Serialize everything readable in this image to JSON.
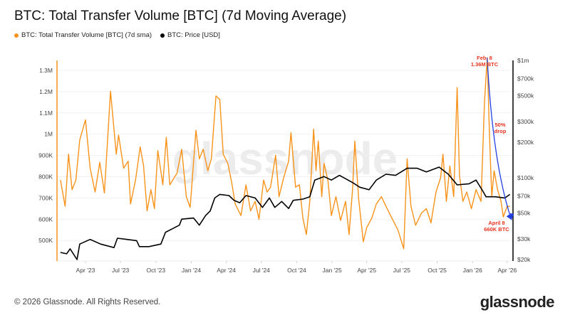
{
  "title": "BTC: Total Transfer Volume [BTC] (7d Moving Average)",
  "footer": "© 2026 Glassnode. All Rights Reserved.",
  "logo": "glassnode",
  "watermark": "glassnode",
  "chart_data": {
    "type": "line",
    "title": "BTC: Total Transfer Volume [BTC] (7d Moving Average)",
    "legend_position": "top-left",
    "grid": true,
    "x_ticks": [
      "Apr '23",
      "Jul '23",
      "Oct '23",
      "Jan '24",
      "Apr '24",
      "Jul '24",
      "Oct '24",
      "Jan '25",
      "Apr '25",
      "Jul '25",
      "Oct '25",
      "Jan '26",
      "Apr '26"
    ],
    "x_tick_dates": [
      "2023-04-01",
      "2023-07-01",
      "2023-10-01",
      "2024-01-01",
      "2024-04-01",
      "2024-07-01",
      "2024-10-01",
      "2025-01-01",
      "2025-04-01",
      "2025-07-01",
      "2025-10-01",
      "2026-01-01",
      "2026-04-01"
    ],
    "y_left": {
      "scale": "linear",
      "range": [
        450000,
        1400000
      ],
      "ticks": [
        500000,
        600000,
        700000,
        800000,
        900000,
        1000000,
        1100000,
        1200000,
        1300000
      ],
      "tick_labels": [
        "500K",
        "600K",
        "700K",
        "800K",
        "900K",
        "1M",
        "1.1M",
        "1.2M",
        "1.3M"
      ]
    },
    "y_right": {
      "scale": "log",
      "range": [
        20000,
        1000000
      ],
      "ticks": [
        1000000,
        700000,
        500000,
        300000,
        200000,
        100000,
        70000,
        50000,
        30000,
        20000
      ],
      "tick_labels": [
        "$1m",
        "$700k",
        "$500k",
        "$300k",
        "$200k",
        "$100k",
        "$70k",
        "$50k",
        "$30k",
        "$20k"
      ]
    },
    "series": [
      {
        "name": "BTC: Total Transfer Volume [BTC] (7d sma)",
        "axis": "left",
        "color": "#f7931a",
        "points": [
          [
            "2023-01-26",
            784000
          ],
          [
            "2023-02-07",
            661000
          ],
          [
            "2023-02-16",
            906000
          ],
          [
            "2023-02-25",
            739000
          ],
          [
            "2023-03-07",
            784000
          ],
          [
            "2023-03-17",
            973000
          ],
          [
            "2023-04-01",
            1068000
          ],
          [
            "2023-04-13",
            840000
          ],
          [
            "2023-04-26",
            728000
          ],
          [
            "2023-05-08",
            868000
          ],
          [
            "2023-05-20",
            723000
          ],
          [
            "2023-06-05",
            1202000
          ],
          [
            "2023-06-20",
            906000
          ],
          [
            "2023-06-26",
            996000
          ],
          [
            "2023-07-09",
            840000
          ],
          [
            "2023-07-21",
            873000
          ],
          [
            "2023-07-27",
            672000
          ],
          [
            "2023-08-09",
            784000
          ],
          [
            "2023-08-21",
            940000
          ],
          [
            "2023-08-30",
            851000
          ],
          [
            "2023-09-08",
            639000
          ],
          [
            "2023-09-18",
            739000
          ],
          [
            "2023-09-27",
            650000
          ],
          [
            "2023-10-06",
            923000
          ],
          [
            "2023-10-19",
            762000
          ],
          [
            "2023-10-28",
            985000
          ],
          [
            "2023-11-06",
            762000
          ],
          [
            "2023-11-25",
            817000
          ],
          [
            "2023-12-07",
            929000
          ],
          [
            "2023-12-19",
            706000
          ],
          [
            "2023-12-29",
            656000
          ],
          [
            "2024-01-13",
            1018000
          ],
          [
            "2024-01-22",
            884000
          ],
          [
            "2024-02-01",
            929000
          ],
          [
            "2024-02-13",
            828000
          ],
          [
            "2024-02-22",
            884000
          ],
          [
            "2024-03-05",
            1180000
          ],
          [
            "2024-03-15",
            1163000
          ],
          [
            "2024-03-24",
            906000
          ],
          [
            "2024-04-05",
            862000
          ],
          [
            "2024-04-15",
            773000
          ],
          [
            "2024-04-24",
            672000
          ],
          [
            "2024-05-09",
            617000
          ],
          [
            "2024-05-22",
            762000
          ],
          [
            "2024-06-03",
            639000
          ],
          [
            "2024-06-15",
            684000
          ],
          [
            "2024-06-25",
            600000
          ],
          [
            "2024-07-07",
            784000
          ],
          [
            "2024-07-16",
            728000
          ],
          [
            "2024-07-25",
            751000
          ],
          [
            "2024-08-07",
            901000
          ],
          [
            "2024-08-16",
            706000
          ],
          [
            "2024-08-28",
            795000
          ],
          [
            "2024-09-10",
            873000
          ],
          [
            "2024-09-16",
            1007000
          ],
          [
            "2024-09-28",
            751000
          ],
          [
            "2024-10-08",
            762000
          ],
          [
            "2024-10-17",
            605000
          ],
          [
            "2024-10-26",
            528000
          ],
          [
            "2024-11-04",
            684000
          ],
          [
            "2024-11-14",
            1024000
          ],
          [
            "2024-11-20",
            828000
          ],
          [
            "2024-11-26",
            968000
          ],
          [
            "2024-12-05",
            706000
          ],
          [
            "2024-12-11",
            862000
          ],
          [
            "2024-12-21",
            784000
          ],
          [
            "2024-12-30",
            617000
          ],
          [
            "2025-01-11",
            706000
          ],
          [
            "2025-01-23",
            594000
          ],
          [
            "2025-02-05",
            684000
          ],
          [
            "2025-02-14",
            528000
          ],
          [
            "2025-02-23",
            739000
          ],
          [
            "2025-03-01",
            968000
          ],
          [
            "2025-03-11",
            695000
          ],
          [
            "2025-03-23",
            494000
          ],
          [
            "2025-04-01",
            561000
          ],
          [
            "2025-04-14",
            605000
          ],
          [
            "2025-04-26",
            672000
          ],
          [
            "2025-05-09",
            706000
          ],
          [
            "2025-05-21",
            661000
          ],
          [
            "2025-06-02",
            617000
          ],
          [
            "2025-06-21",
            550000
          ],
          [
            "2025-07-06",
            461000
          ],
          [
            "2025-07-15",
            884000
          ],
          [
            "2025-07-25",
            661000
          ],
          [
            "2025-08-06",
            572000
          ],
          [
            "2025-08-21",
            628000
          ],
          [
            "2025-09-03",
            650000
          ],
          [
            "2025-09-15",
            583000
          ],
          [
            "2025-09-28",
            728000
          ],
          [
            "2025-10-10",
            795000
          ],
          [
            "2025-10-16",
            906000
          ],
          [
            "2025-10-25",
            684000
          ],
          [
            "2025-11-03",
            851000
          ],
          [
            "2025-11-13",
            706000
          ],
          [
            "2025-11-22",
            1219000
          ],
          [
            "2025-11-28",
            806000
          ],
          [
            "2025-12-07",
            684000
          ],
          [
            "2025-12-17",
            728000
          ],
          [
            "2025-12-29",
            650000
          ],
          [
            "2026-01-10",
            739000
          ],
          [
            "2026-01-23",
            684000
          ],
          [
            "2026-02-01",
            1152000
          ],
          [
            "2026-02-08",
            1360000
          ],
          [
            "2026-02-14",
            996000
          ],
          [
            "2026-02-20",
            706000
          ],
          [
            "2026-02-26",
            828000
          ],
          [
            "2026-03-07",
            739000
          ],
          [
            "2026-03-16",
            684000
          ],
          [
            "2026-03-22",
            611000
          ],
          [
            "2026-04-01",
            661000
          ],
          [
            "2026-04-08",
            660000
          ]
        ]
      },
      {
        "name": "BTC: Price [USD]",
        "axis": "right",
        "color": "#000000",
        "points": [
          [
            "2023-01-26",
            23000
          ],
          [
            "2023-02-11",
            22400
          ],
          [
            "2023-02-20",
            24700
          ],
          [
            "2023-03-10",
            20000
          ],
          [
            "2023-03-17",
            27100
          ],
          [
            "2023-04-13",
            29700
          ],
          [
            "2023-05-10",
            27100
          ],
          [
            "2023-06-14",
            25300
          ],
          [
            "2023-06-23",
            30400
          ],
          [
            "2023-07-18",
            29700
          ],
          [
            "2023-08-12",
            29000
          ],
          [
            "2023-08-19",
            25800
          ],
          [
            "2023-09-13",
            25800
          ],
          [
            "2023-10-14",
            27100
          ],
          [
            "2023-10-26",
            34200
          ],
          [
            "2023-11-13",
            36600
          ],
          [
            "2023-12-01",
            39300
          ],
          [
            "2023-12-07",
            44200
          ],
          [
            "2024-01-07",
            45200
          ],
          [
            "2024-01-22",
            39300
          ],
          [
            "2024-02-07",
            47400
          ],
          [
            "2024-02-19",
            51900
          ],
          [
            "2024-03-02",
            67100
          ],
          [
            "2024-03-15",
            71900
          ],
          [
            "2024-04-08",
            70300
          ],
          [
            "2024-04-21",
            64000
          ],
          [
            "2024-05-06",
            61100
          ],
          [
            "2024-05-22",
            70300
          ],
          [
            "2024-06-15",
            67100
          ],
          [
            "2024-07-04",
            55700
          ],
          [
            "2024-07-22",
            67100
          ],
          [
            "2024-08-05",
            55700
          ],
          [
            "2024-08-23",
            62600
          ],
          [
            "2024-09-10",
            54500
          ],
          [
            "2024-09-22",
            64000
          ],
          [
            "2024-10-17",
            65600
          ],
          [
            "2024-11-04",
            68700
          ],
          [
            "2024-11-17",
            95300
          ],
          [
            "2024-12-11",
            102100
          ],
          [
            "2024-12-30",
            95300
          ],
          [
            "2025-01-20",
            104500
          ],
          [
            "2025-02-23",
            90800
          ],
          [
            "2025-03-14",
            82800
          ],
          [
            "2025-04-07",
            78900
          ],
          [
            "2025-04-26",
            95300
          ],
          [
            "2025-05-21",
            107000
          ],
          [
            "2025-06-15",
            104500
          ],
          [
            "2025-07-15",
            120200
          ],
          [
            "2025-08-10",
            120200
          ],
          [
            "2025-09-03",
            112000
          ],
          [
            "2025-10-06",
            123000
          ],
          [
            "2025-10-30",
            107000
          ],
          [
            "2025-11-22",
            86700
          ],
          [
            "2025-12-23",
            88700
          ],
          [
            "2026-01-10",
            95300
          ],
          [
            "2026-01-29",
            75400
          ],
          [
            "2026-02-05",
            68700
          ],
          [
            "2026-03-01",
            68700
          ],
          [
            "2026-03-26",
            67100
          ],
          [
            "2026-04-08",
            71900
          ]
        ]
      }
    ],
    "annotations": [
      {
        "text_line1": "Feb. 8",
        "text_line2": "1.36M BTC",
        "color": "#e8321e"
      },
      {
        "text_line1": "50%",
        "text_line2": "drop",
        "color": "#e8321e"
      },
      {
        "text_line1": "April 8",
        "text_line2": "660K BTC",
        "color": "#e8321e"
      }
    ],
    "arrow": {
      "from": [
        "2026-02-08",
        1360000
      ],
      "to": [
        "2026-04-08",
        600000
      ],
      "color": "#2340e0"
    }
  }
}
